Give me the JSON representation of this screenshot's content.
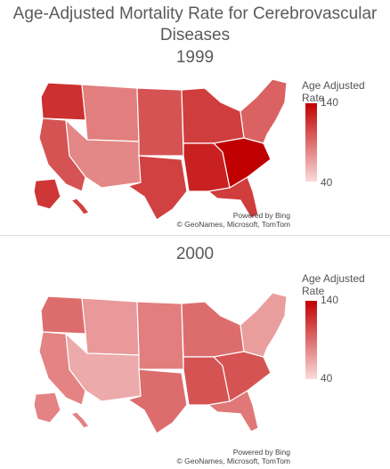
{
  "header": {
    "title_line1": "Age-Adjusted Mortality Rate for Cerebrovascular",
    "title_line2": "Diseases"
  },
  "maps": [
    {
      "year": "1999",
      "legend": {
        "title": "Age Adjusted Rate",
        "max": "140",
        "min": "40"
      },
      "credit": {
        "line1": "Powered by Bing",
        "line2": "© GeoNames, Microsoft, TomTom"
      },
      "color_low": "#fadada",
      "color_high": "#c00000",
      "shading": {
        "west": 0.62,
        "northwest": 0.78,
        "mountain": 0.42,
        "southwest": 0.38,
        "plains": 0.62,
        "texas": 0.7,
        "midwest": 0.72,
        "south": 0.85,
        "carolinas": 1.0,
        "northeast": 0.55,
        "florida": 0.72,
        "alaska": 0.75,
        "hawaii": 0.7
      }
    },
    {
      "year": "2000",
      "legend": {
        "title": "Age Adjusted Rate",
        "max": "140",
        "min": "40"
      },
      "credit": {
        "line1": "Powered by Bing",
        "line2": "© GeoNames, Microsoft, TomTom"
      },
      "color_low": "#fadada",
      "color_high": "#c00000",
      "shading": {
        "west": 0.4,
        "northwest": 0.5,
        "mountain": 0.3,
        "southwest": 0.22,
        "plains": 0.42,
        "texas": 0.5,
        "midwest": 0.5,
        "south": 0.62,
        "carolinas": 0.62,
        "northeast": 0.28,
        "florida": 0.45,
        "alaska": 0.4,
        "hawaii": 0.4
      }
    }
  ]
}
